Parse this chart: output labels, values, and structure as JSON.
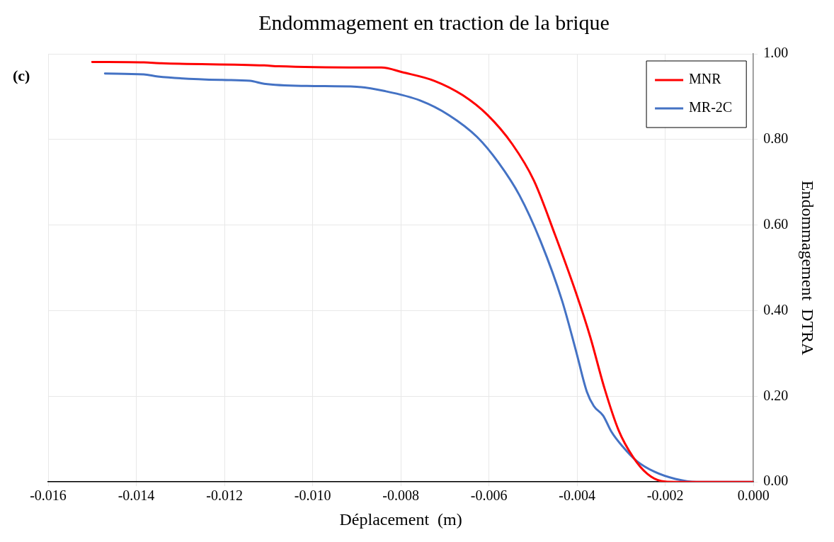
{
  "chart_data": {
    "type": "line",
    "title": "Endommagement en traction de la brique",
    "xlabel": "Déplacement  (m)",
    "ylabel": "Endommagement  DTRA",
    "annotations": [
      "(c)"
    ],
    "xlim": [
      -0.016,
      0
    ],
    "xticks": [
      {
        "value": -0.016,
        "label": "-0.016"
      },
      {
        "value": -0.014,
        "label": "-0.014"
      },
      {
        "value": -0.012,
        "label": "-0.012"
      },
      {
        "value": -0.01,
        "label": "-0.010"
      },
      {
        "value": -0.008,
        "label": "-0.008"
      },
      {
        "value": -0.006,
        "label": "-0.006"
      },
      {
        "value": -0.004,
        "label": "-0.004"
      },
      {
        "value": -0.002,
        "label": "-0.002"
      },
      {
        "value": 0,
        "label": "0.000"
      }
    ],
    "ylim": [
      0,
      1
    ],
    "yticks": [
      {
        "value": 0,
        "label": "0.00"
      },
      {
        "value": 0.2,
        "label": "0.20"
      },
      {
        "value": 0.4,
        "label": "0.40"
      },
      {
        "value": 0.6,
        "label": "0.60"
      },
      {
        "value": 0.8,
        "label": "0.80"
      },
      {
        "value": 1,
        "label": "1.00"
      }
    ],
    "grid": true,
    "legend": "top right",
    "marker": "none",
    "line_style": "solid",
    "series": [
      {
        "name": "MNR",
        "color": "#ff0000",
        "x": [
          -0.015,
          -0.01383,
          -0.01343,
          -0.0111,
          -0.01077,
          -0.00852,
          -0.00844,
          -0.00796,
          -0.00724,
          -0.00659,
          -0.00603,
          -0.00547,
          -0.00498,
          -0.0045,
          -0.00402,
          -0.0037,
          -0.00338,
          -0.00306,
          -0.00273,
          -0.00241,
          -0.00209,
          -0.00177,
          0
        ],
        "values": [
          0.981,
          0.98,
          0.978,
          0.973,
          0.971,
          0.968,
          0.968,
          0.957,
          0.937,
          0.903,
          0.857,
          0.789,
          0.704,
          0.577,
          0.44,
          0.338,
          0.219,
          0.121,
          0.058,
          0.019,
          0.002,
          0,
          0
        ]
      },
      {
        "name": "MR-2C",
        "color": "#4472c4",
        "x": [
          -0.01471,
          -0.01383,
          -0.01351,
          -0.01206,
          -0.01142,
          -0.0111,
          -0.01013,
          -0.009,
          -0.00836,
          -0.00756,
          -0.00691,
          -0.00627,
          -0.00579,
          -0.00531,
          -0.00482,
          -0.00434,
          -0.00402,
          -0.00378,
          -0.00362,
          -0.00341,
          -0.00322,
          -0.00297,
          -0.00265,
          -0.00225,
          -0.00177,
          -0.00129,
          0
        ],
        "values": [
          0.954,
          0.952,
          0.947,
          0.939,
          0.937,
          0.93,
          0.925,
          0.923,
          0.913,
          0.891,
          0.857,
          0.806,
          0.747,
          0.67,
          0.56,
          0.423,
          0.304,
          0.211,
          0.177,
          0.155,
          0.117,
          0.083,
          0.049,
          0.024,
          0.007,
          0,
          0
        ]
      }
    ]
  }
}
